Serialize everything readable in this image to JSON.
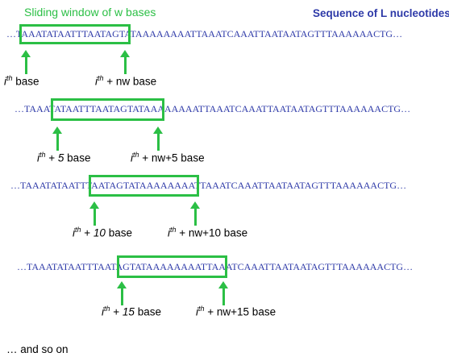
{
  "titles": {
    "window": "Sliding window of w bases",
    "sequence": "Sequence of L nucleotides"
  },
  "rows": [
    {
      "sequence": "…TAAATATAATTTAATAGTATAAAAAAAATTAAATCAAATTAATAATAGTTTAAAAAACTG…",
      "start_label": {
        "prefix": "i",
        "sup": "th",
        "rest": " base",
        "offset": ""
      },
      "end_label": {
        "prefix": "i",
        "sup": "th",
        "rest": " + nw base"
      }
    },
    {
      "sequence": "…TAAATATAATTTAATAGTATAAAAAAAATTAAATCAAATTAATAATAGTTTAAAAAACTG…",
      "start_label": {
        "prefix": "i",
        "sup": "th",
        "plus": " + ",
        "offset": "5",
        "rest": " base"
      },
      "end_label": {
        "prefix": "i",
        "sup": "th",
        "rest": " + nw+5 base"
      }
    },
    {
      "sequence": "…TAAATATAATTTAATAGTATAAAAAAAATTAAATCAAATTAATAATAGTTTAAAAAACTG…",
      "start_label": {
        "prefix": "i",
        "sup": "th",
        "plus": " + ",
        "offset": "10",
        "rest": " base"
      },
      "end_label": {
        "prefix": "i",
        "sup": "th",
        "rest": " + nw+10 base"
      }
    },
    {
      "sequence": "…TAAATATAATTTAATAGTATAAAAAAAATTAAATCAAATTAATAATAGTTTAAAAAACTG…",
      "start_label": {
        "prefix": "i",
        "sup": "th",
        "plus": " + ",
        "offset": "15",
        "rest": " base"
      },
      "end_label": {
        "prefix": "i",
        "sup": "th",
        "rest": " + nw+15 base"
      }
    }
  ],
  "footer": "… and so on",
  "colors": {
    "window": "#2bbf45",
    "sequence": "#2e3aa8"
  }
}
